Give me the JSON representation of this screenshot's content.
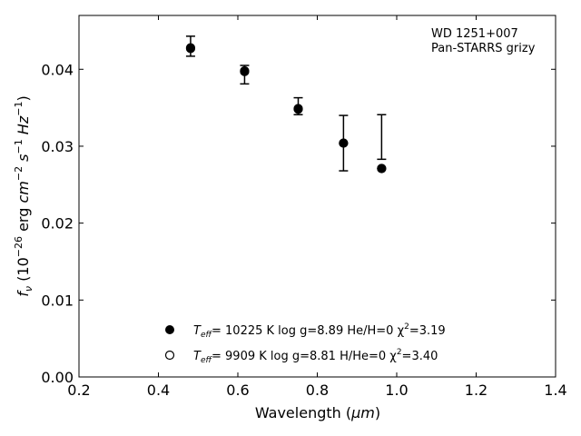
{
  "chart_data": {
    "type": "scatter",
    "title": "",
    "xlabel_main": "Wavelength (",
    "xlabel_unit": "μm",
    "xlabel_close": ")",
    "ylabel": {
      "var": "f",
      "var_sub": "ν",
      "open": " (10",
      "exp1": "−26",
      "erg": " erg ",
      "cm": "cm",
      "exp2": "−2",
      "s": " s",
      "exp3": "−1",
      "hz": " Hz",
      "exp4": "−1",
      "close": ")"
    },
    "xlim": [
      0.2,
      1.4
    ],
    "ylim": [
      0.0,
      0.047
    ],
    "xticks": [
      "0.2",
      "0.4",
      "0.6",
      "0.8",
      "1.0",
      "1.2",
      "1.4"
    ],
    "xtick_values": [
      0.2,
      0.4,
      0.6,
      0.8,
      1.0,
      1.2,
      1.4
    ],
    "yticks": [
      "0.00",
      "0.01",
      "0.02",
      "0.03",
      "0.04"
    ],
    "ytick_values": [
      0.0,
      0.01,
      0.02,
      0.03,
      0.04
    ],
    "grid": false,
    "annotation": [
      "WD 1251+007",
      "Pan-STARRS grizy"
    ],
    "observed": {
      "x": [
        0.481,
        0.617,
        0.752,
        0.866,
        0.962
      ],
      "y": [
        0.043,
        0.0393,
        0.0352,
        0.0304,
        0.0312
      ],
      "yerr": [
        0.0013,
        0.0012,
        0.0011,
        0.0036,
        0.0029
      ]
    },
    "series": [
      {
        "name": "10225 K  log g=8.89  He/H=0  χ²=3.19",
        "marker": "filled",
        "x": [
          0.481,
          0.617,
          0.752,
          0.866,
          0.962
        ],
        "y": [
          0.0428,
          0.0398,
          0.0349,
          0.0304,
          0.0271
        ]
      },
      {
        "name": "9909 K  log g=8.81  H/He=0  χ²=3.40",
        "marker": "open",
        "x": [
          0.481,
          0.617,
          0.752,
          0.866,
          0.962
        ],
        "y": [
          0.0427,
          0.0397,
          0.0348,
          0.0304,
          0.0271
        ]
      }
    ],
    "legend_entries": [
      {
        "teff_label": "T",
        "teff_sub": "eff",
        "eq": "= 10225 K  log g=8.89  He/H=0  χ",
        "chi_exp": "2",
        "tail": "=3.19"
      },
      {
        "teff_label": "T",
        "teff_sub": "eff",
        "eq": "=  9909 K  log g=8.81  H/He=0  χ",
        "chi_exp": "2",
        "tail": "=3.40"
      }
    ],
    "legend_position": "lower-center"
  },
  "colors": {
    "marker": "#000000",
    "axis": "#000000",
    "background": "#ffffff"
  }
}
